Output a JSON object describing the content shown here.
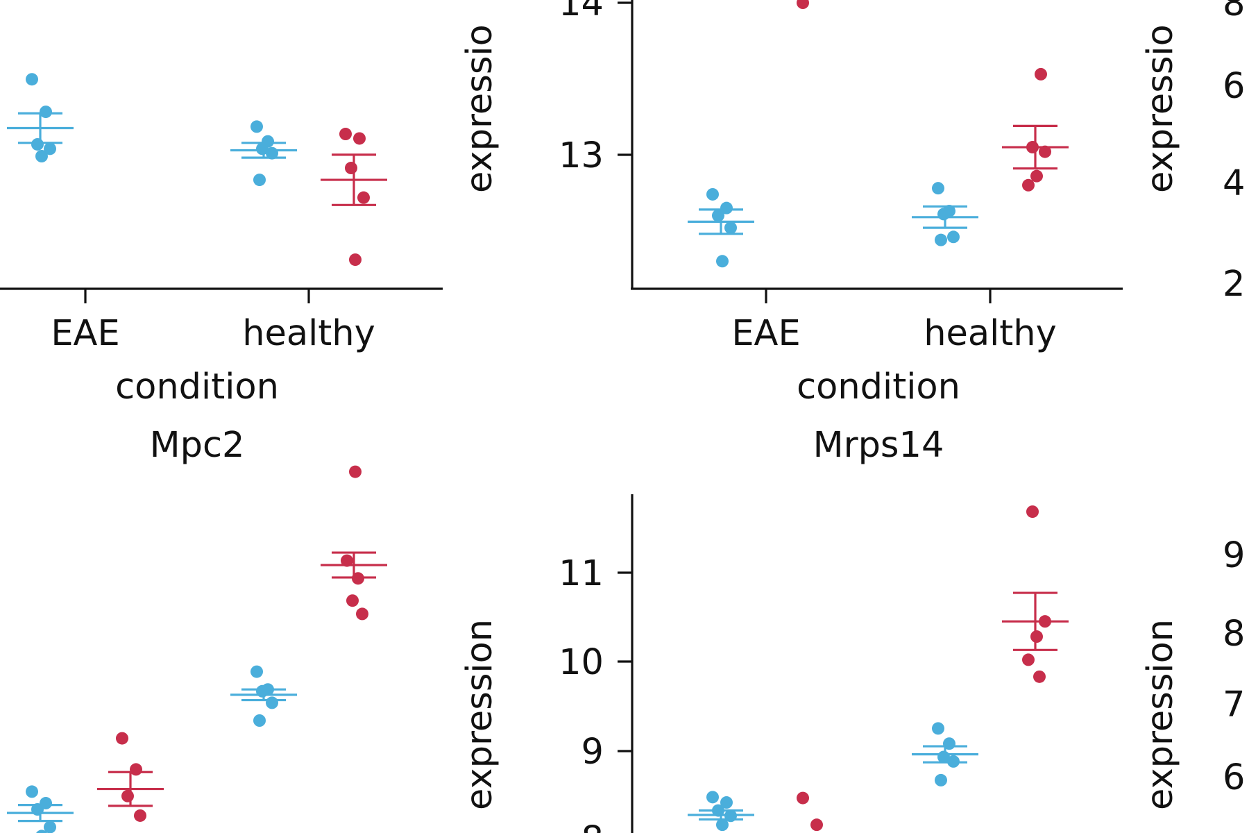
{
  "colors": {
    "cyan": "#4aaedb",
    "red": "#c72e4b"
  },
  "panels": {
    "top_left": {
      "xlabel": "condition"
    },
    "top_mid": {
      "xlabel": "condition",
      "ylabel": "expressio"
    },
    "top_right": {
      "ylabel": "expressio"
    },
    "bottom_left": {
      "title": "Mpc2"
    },
    "bottom_mid": {
      "title": "Mrps14",
      "ylabel": "expression"
    },
    "bottom_right": {
      "ylabel": "expression"
    }
  },
  "chart_data": [
    {
      "type": "scatter",
      "panel": "top_left",
      "xlabel": "condition",
      "categories": [
        "EAE",
        "healthy"
      ],
      "series": [
        {
          "color": "#4aaedb",
          "points": [
            [
              "EAE",
              13.52
            ],
            [
              "EAE",
              13.3
            ],
            [
              "EAE",
              13.08
            ],
            [
              "EAE",
              13.05
            ],
            [
              "EAE",
              13.0
            ],
            [
              "healthy",
              13.2
            ],
            [
              "healthy",
              13.1
            ],
            [
              "healthy",
              13.05
            ],
            [
              "healthy",
              13.02
            ],
            [
              "healthy",
              12.84
            ]
          ],
          "means": [
            {
              "category": "EAE",
              "mean": 13.19,
              "sem": 0.1
            },
            {
              "category": "healthy",
              "mean": 13.04,
              "sem": 0.05
            }
          ]
        },
        {
          "color": "#c72e4b",
          "points": [
            [
              "healthy",
              13.15
            ],
            [
              "healthy",
              13.12
            ],
            [
              "healthy",
              12.92
            ],
            [
              "healthy",
              12.72
            ],
            [
              "healthy",
              12.3
            ]
          ],
          "means": [
            {
              "category": "healthy",
              "mean": 12.84,
              "sem": 0.17
            }
          ]
        }
      ]
    },
    {
      "type": "scatter",
      "panel": "top_mid",
      "xlabel": "condition",
      "ylabel": "expressio",
      "categories": [
        "EAE",
        "healthy"
      ],
      "y_ticks": [
        13,
        14
      ],
      "series": [
        {
          "color": "#4aaedb",
          "points": [
            [
              "EAE",
              12.74
            ],
            [
              "EAE",
              12.65
            ],
            [
              "EAE",
              12.6
            ],
            [
              "EAE",
              12.52
            ],
            [
              "EAE",
              12.3
            ],
            [
              "healthy",
              12.78
            ],
            [
              "healthy",
              12.63
            ],
            [
              "healthy",
              12.61
            ],
            [
              "healthy",
              12.46
            ],
            [
              "healthy",
              12.44
            ]
          ],
          "means": [
            {
              "category": "EAE",
              "mean": 12.56,
              "sem": 0.08
            },
            {
              "category": "healthy",
              "mean": 12.59,
              "sem": 0.07
            }
          ]
        },
        {
          "color": "#c72e4b",
          "points": [
            [
              "EAE",
              14.0
            ],
            [
              "healthy",
              13.53
            ],
            [
              "healthy",
              13.05
            ],
            [
              "healthy",
              13.02
            ],
            [
              "healthy",
              12.86
            ],
            [
              "healthy",
              12.8
            ]
          ],
          "means": [
            {
              "category": "healthy",
              "mean": 13.05,
              "sem": 0.14
            }
          ]
        }
      ]
    },
    {
      "type": "scatter",
      "panel": "bottom_left",
      "title": "Mpc2",
      "series": [
        {
          "color": "#4aaedb",
          "points": [
            [
              "EAE",
              6.95
            ],
            [
              "EAE",
              6.82
            ],
            [
              "EAE",
              6.75
            ],
            [
              "EAE",
              6.55
            ],
            [
              "EAE",
              6.45
            ],
            [
              "healthy",
              8.3
            ],
            [
              "healthy",
              8.1
            ],
            [
              "healthy",
              8.08
            ],
            [
              "healthy",
              7.95
            ],
            [
              "healthy",
              7.75
            ]
          ],
          "means": [
            {
              "category": "EAE",
              "mean": 6.71,
              "sem": 0.09
            },
            {
              "category": "healthy",
              "mean": 8.04,
              "sem": 0.06
            }
          ]
        },
        {
          "color": "#c72e4b",
          "points": [
            [
              "EAE",
              7.55
            ],
            [
              "EAE",
              7.2
            ],
            [
              "EAE",
              6.9
            ],
            [
              "EAE",
              6.68
            ],
            [
              "healthy",
              10.55
            ],
            [
              "healthy",
              9.55
            ],
            [
              "healthy",
              9.35
            ],
            [
              "healthy",
              9.1
            ],
            [
              "healthy",
              8.95
            ]
          ],
          "means": [
            {
              "category": "EAE",
              "mean": 6.98,
              "sem": 0.19
            },
            {
              "category": "healthy",
              "mean": 9.5,
              "sem": 0.14
            }
          ]
        }
      ]
    },
    {
      "type": "scatter",
      "panel": "bottom_mid",
      "title": "Mrps14",
      "ylabel": "expression",
      "y_ticks": [
        8,
        9,
        10,
        11
      ],
      "series": [
        {
          "color": "#4aaedb",
          "points": [
            [
              "EAE",
              8.48
            ],
            [
              "EAE",
              8.42
            ],
            [
              "EAE",
              8.33
            ],
            [
              "EAE",
              8.27
            ],
            [
              "EAE",
              8.17
            ],
            [
              "healthy",
              9.25
            ],
            [
              "healthy",
              9.08
            ],
            [
              "healthy",
              8.93
            ],
            [
              "healthy",
              8.88
            ],
            [
              "healthy",
              8.67
            ]
          ],
          "means": [
            {
              "category": "EAE",
              "mean": 8.28,
              "sem": 0.05
            },
            {
              "category": "healthy",
              "mean": 8.96,
              "sem": 0.09
            }
          ]
        },
        {
          "color": "#c72e4b",
          "points": [
            [
              "EAE",
              8.47
            ],
            [
              "EAE",
              8.17
            ],
            [
              "healthy",
              11.68
            ],
            [
              "healthy",
              10.45
            ],
            [
              "healthy",
              10.28
            ],
            [
              "healthy",
              10.02
            ],
            [
              "healthy",
              9.83
            ]
          ],
          "means": [
            {
              "category": "EAE",
              "mean": 8.03,
              "sem": 0.0
            },
            {
              "category": "healthy",
              "mean": 10.45,
              "sem": 0.32
            }
          ]
        }
      ]
    },
    {
      "type": "scatter",
      "panel": "top_right",
      "ylabel": "expressio",
      "y_ticks": [
        2,
        4,
        6,
        8
      ],
      "series": []
    },
    {
      "type": "scatter",
      "panel": "bottom_right",
      "ylabel": "expression",
      "y_ticks": [
        6,
        7,
        8,
        9
      ],
      "series": []
    }
  ]
}
